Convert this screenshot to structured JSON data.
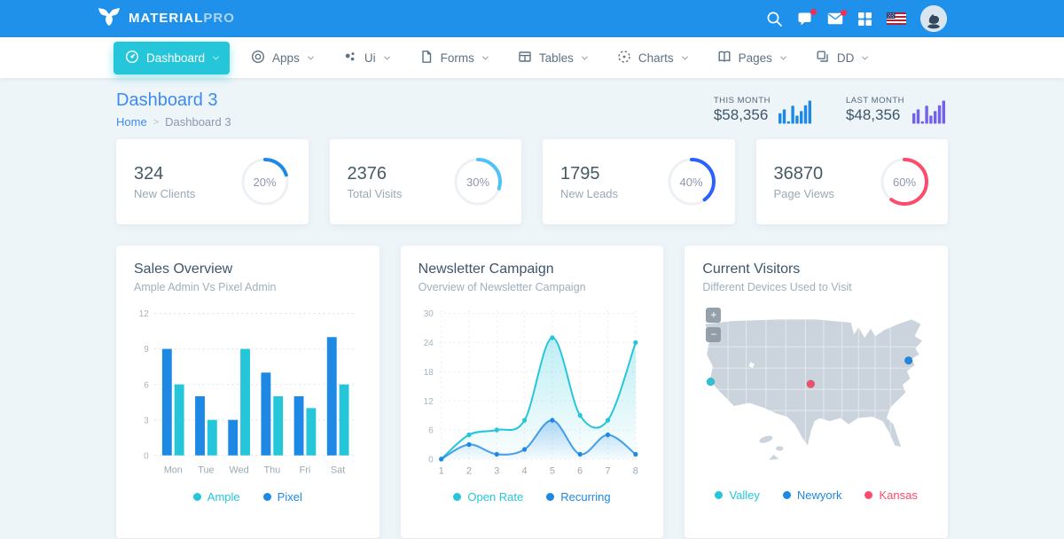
{
  "topbar": {
    "brand_bold": "MATERIAL",
    "brand_light": "PRO",
    "accent_color": "#2091ea"
  },
  "nav": {
    "items": [
      {
        "label": "Dashboard",
        "icon": "speedometer-icon",
        "active": true
      },
      {
        "label": "Apps",
        "icon": "target-circle-icon",
        "active": false
      },
      {
        "label": "Ui",
        "icon": "dots-cluster-icon",
        "active": false
      },
      {
        "label": "Forms",
        "icon": "document-icon",
        "active": false
      },
      {
        "label": "Tables",
        "icon": "table-icon",
        "active": false
      },
      {
        "label": "Charts",
        "icon": "dashed-circle-icon",
        "active": false
      },
      {
        "label": "Pages",
        "icon": "book-icon",
        "active": false
      },
      {
        "label": "DD",
        "icon": "stacked-squares-icon",
        "active": false
      }
    ],
    "active_color": "#26c6da"
  },
  "page": {
    "title": "Dashboard 3",
    "breadcrumb_home": "Home",
    "breadcrumb_sep": ">",
    "breadcrumb_current": "Dashboard 3"
  },
  "month_stats": [
    {
      "label": "THIS MONTH",
      "value": "$58,356",
      "color": "#1e88e5",
      "bars": [
        45,
        62,
        10,
        78,
        35,
        55,
        80,
        100
      ]
    },
    {
      "label": "LAST MONTH",
      "value": "$48,356",
      "color": "#7460ee",
      "bars": [
        45,
        62,
        10,
        78,
        35,
        55,
        80,
        100
      ]
    }
  ],
  "stat_cards": [
    {
      "value": "324",
      "label": "New Clients",
      "percent": 20,
      "percent_label": "20%",
      "color": "#1e88e5"
    },
    {
      "value": "2376",
      "label": "Total Visits",
      "percent": 30,
      "percent_label": "30%",
      "color": "#4fc3f7"
    },
    {
      "value": "1795",
      "label": "New Leads",
      "percent": 40,
      "percent_label": "40%",
      "color": "#2962ff"
    },
    {
      "value": "36870",
      "label": "Page Views",
      "percent": 60,
      "percent_label": "60%",
      "color": "#fc4b6c"
    }
  ],
  "chart_data": [
    {
      "type": "bar",
      "id": "sales",
      "title": "Sales Overview",
      "subtitle": "Ample Admin Vs Pixel Admin",
      "categories": [
        "Mon",
        "Tue",
        "Wed",
        "Thu",
        "Fri",
        "Sat"
      ],
      "series": [
        {
          "name": "Pixel",
          "color": "#1e88e5",
          "values": [
            9,
            5,
            3,
            7,
            5,
            10
          ]
        },
        {
          "name": "Ample",
          "color": "#26c6da",
          "values": [
            6,
            3,
            9,
            5,
            4,
            6
          ]
        }
      ],
      "legend": [
        {
          "label": "Ample",
          "color": "#26c6da"
        },
        {
          "label": "Pixel",
          "color": "#1e88e5"
        }
      ],
      "yticks": [
        0,
        3,
        6,
        9,
        12
      ],
      "ylim": [
        0,
        12
      ],
      "grid": "dotted-horizontal",
      "legend_position": "bottom"
    },
    {
      "type": "line",
      "id": "newsletter",
      "title": "Newsletter Campaign",
      "subtitle": "Overview of Newsletter Campaign",
      "categories": [
        "1",
        "2",
        "3",
        "4",
        "5",
        "6",
        "7",
        "8"
      ],
      "series": [
        {
          "name": "Open Rate",
          "color": "#26c6da",
          "values": [
            0,
            5,
            6,
            8,
            25,
            9,
            8,
            24
          ]
        },
        {
          "name": "Recurring",
          "color": "#1e88e5",
          "values": [
            0,
            3,
            1,
            2,
            8,
            1,
            5,
            1
          ]
        }
      ],
      "legend": [
        {
          "label": "Open Rate",
          "color": "#26c6da"
        },
        {
          "label": "Recurring",
          "color": "#1e88e5"
        }
      ],
      "yticks": [
        0,
        6,
        12,
        18,
        24,
        30
      ],
      "ylim": [
        0,
        30
      ],
      "grid": "dotted-both",
      "smooth": true,
      "area": true,
      "legend_position": "bottom"
    }
  ],
  "visitors": {
    "title": "Current Visitors",
    "subtitle": "Different Devices Used to Visit",
    "zoom_in_label": "+",
    "zoom_out_label": "−",
    "map_color": "#cbd4dc",
    "markers": [
      {
        "name": "Valley",
        "x": 11,
        "y": 84,
        "color": "#26c6da"
      },
      {
        "name": "Newyork",
        "x": 272,
        "y": 56,
        "color": "#1e88e5"
      },
      {
        "name": "Kansas",
        "x": 143,
        "y": 87,
        "color": "#fc4b6c"
      }
    ],
    "legend": [
      {
        "label": "Valley",
        "color": "#26c6da"
      },
      {
        "label": "Newyork",
        "color": "#1e88e5"
      },
      {
        "label": "Kansas",
        "color": "#fc4b6c"
      }
    ]
  }
}
